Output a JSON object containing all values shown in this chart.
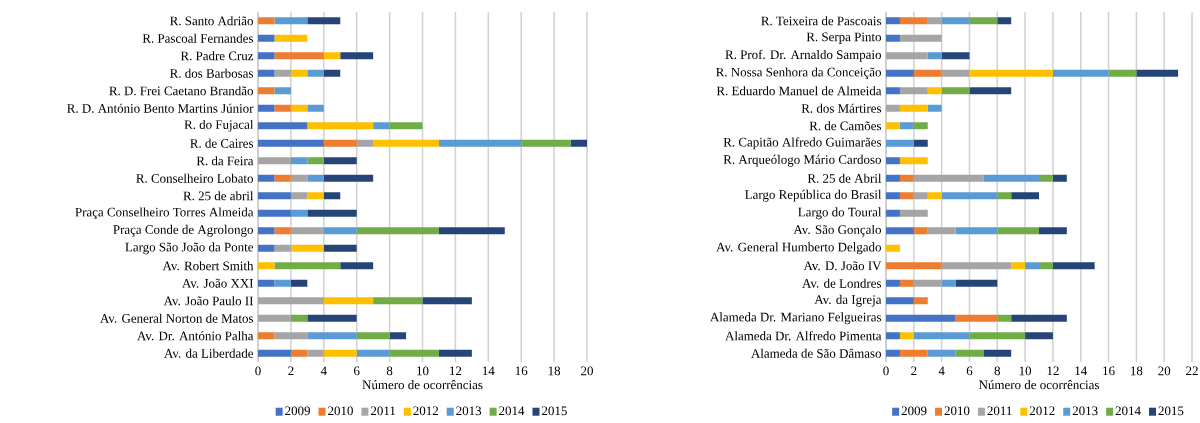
{
  "chart_data": [
    {
      "type": "bar",
      "orientation": "horizontal",
      "stacked": true,
      "xlabel": "Número de ocorrências",
      "grid": "x",
      "legend": "bottom",
      "categories": [
        "R. Santo Adrião",
        "R. Pascoal Fernandes",
        "R. Padre Cruz",
        "R. dos Barbosas",
        "R. D. Frei Caetano Brandão",
        "R. D. António Bento Martins Júnior",
        "R. do Fujacal",
        "R. de Caires",
        "R. da Feira",
        "R. Conselheiro Lobato",
        "R. 25 de abril",
        "Praça Conselheiro Torres Almeida",
        "Praça Conde de Agrolongo",
        "Largo São João da Ponte",
        "Av. Robert Smith",
        "Av. João XXI",
        "Av. João Paulo II",
        "Av. General Norton de Matos",
        "Av. Dr. António Palha",
        "Av. da Liberdade"
      ],
      "xlim": [
        0,
        20
      ],
      "xticks": [
        0,
        2,
        4,
        6,
        8,
        10,
        12,
        14,
        16,
        18,
        20
      ],
      "series": [
        {
          "name": "2009",
          "color": "#4472c4",
          "values": [
            0,
            1,
            1,
            1,
            0,
            1,
            3,
            4,
            0,
            1,
            2,
            2,
            1,
            1,
            0,
            1,
            0,
            0,
            0,
            2
          ]
        },
        {
          "name": "2010",
          "color": "#ed7d31",
          "values": [
            1,
            0,
            3,
            0,
            1,
            1,
            0,
            2,
            0,
            1,
            0,
            0,
            1,
            0,
            0,
            0,
            0,
            0,
            1,
            1
          ]
        },
        {
          "name": "2011",
          "color": "#a5a5a5",
          "values": [
            0,
            0,
            0,
            1,
            0,
            0,
            0,
            1,
            2,
            1,
            1,
            0,
            2,
            1,
            0,
            0,
            4,
            2,
            2,
            1
          ]
        },
        {
          "name": "2012",
          "color": "#ffc000",
          "values": [
            0,
            2,
            1,
            1,
            0,
            1,
            4,
            4,
            0,
            0,
            1,
            0,
            0,
            2,
            1,
            0,
            3,
            0,
            0,
            2
          ]
        },
        {
          "name": "2013",
          "color": "#5b9bd5",
          "values": [
            2,
            0,
            0,
            1,
            1,
            1,
            1,
            5,
            1,
            1,
            0,
            1,
            2,
            0,
            0,
            1,
            0,
            0,
            3,
            2
          ]
        },
        {
          "name": "2014",
          "color": "#70ad47",
          "values": [
            0,
            0,
            0,
            0,
            0,
            0,
            2,
            3,
            1,
            0,
            0,
            0,
            5,
            0,
            4,
            0,
            3,
            1,
            2,
            3
          ]
        },
        {
          "name": "2015",
          "color": "#264478",
          "values": [
            2,
            0,
            2,
            1,
            0,
            0,
            0,
            1,
            2,
            3,
            1,
            3,
            4,
            2,
            2,
            1,
            3,
            3,
            1,
            2
          ]
        }
      ]
    },
    {
      "type": "bar",
      "orientation": "horizontal",
      "stacked": true,
      "xlabel": "Número de ocorrências",
      "grid": "x",
      "legend": "bottom",
      "categories": [
        "R. Teixeira de Pascoais",
        "R. Serpa Pinto",
        "R. Prof. Dr. Arnaldo Sampaio",
        "R. Nossa Senhora da Conceição",
        "R. Eduardo Manuel de Almeida",
        "R. dos Mártires",
        "R. de Camões",
        "R. Capitão Alfredo Guimarães",
        "R. Arqueólogo Mário Cardoso",
        "R. 25 de Abril",
        "Largo República do Brasil",
        "Largo do Toural",
        "Av. São Gonçalo",
        "Av. General Humberto Delgado",
        "Av. D. João IV",
        "Av. de Londres",
        "Av. da Igreja",
        "Alameda Dr. Mariano Felgueiras",
        "Alameda Dr. Alfredo Pimenta",
        "Alameda de São Dâmaso"
      ],
      "xlim": [
        0,
        22
      ],
      "xticks": [
        0,
        2,
        4,
        6,
        8,
        10,
        12,
        14,
        16,
        18,
        20,
        22
      ],
      "series": [
        {
          "name": "2009",
          "color": "#4472c4",
          "values": [
            1,
            1,
            0,
            2,
            1,
            0,
            0,
            0,
            1,
            1,
            1,
            1,
            2,
            0,
            0,
            1,
            2,
            5,
            1,
            1
          ]
        },
        {
          "name": "2010",
          "color": "#ed7d31",
          "values": [
            2,
            0,
            0,
            2,
            0,
            0,
            0,
            0,
            0,
            1,
            1,
            0,
            1,
            0,
            4,
            1,
            1,
            3,
            0,
            2
          ]
        },
        {
          "name": "2011",
          "color": "#a5a5a5",
          "values": [
            1,
            3,
            3,
            2,
            2,
            1,
            0,
            0,
            0,
            5,
            1,
            2,
            2,
            0,
            5,
            2,
            0,
            0,
            0,
            0
          ]
        },
        {
          "name": "2012",
          "color": "#ffc000",
          "values": [
            0,
            0,
            0,
            6,
            1,
            2,
            1,
            0,
            2,
            0,
            1,
            0,
            0,
            1,
            1,
            0,
            0,
            0,
            1,
            0
          ]
        },
        {
          "name": "2013",
          "color": "#5b9bd5",
          "values": [
            2,
            0,
            1,
            4,
            0,
            1,
            1,
            2,
            0,
            4,
            4,
            0,
            3,
            0,
            1,
            1,
            0,
            0,
            4,
            2
          ]
        },
        {
          "name": "2014",
          "color": "#70ad47",
          "values": [
            2,
            0,
            0,
            2,
            2,
            0,
            1,
            0,
            0,
            1,
            1,
            0,
            3,
            0,
            1,
            0,
            0,
            1,
            4,
            2
          ]
        },
        {
          "name": "2015",
          "color": "#264478",
          "values": [
            1,
            0,
            2,
            3,
            3,
            0,
            0,
            1,
            0,
            1,
            2,
            0,
            2,
            0,
            3,
            3,
            0,
            4,
            2,
            2
          ]
        }
      ]
    }
  ]
}
